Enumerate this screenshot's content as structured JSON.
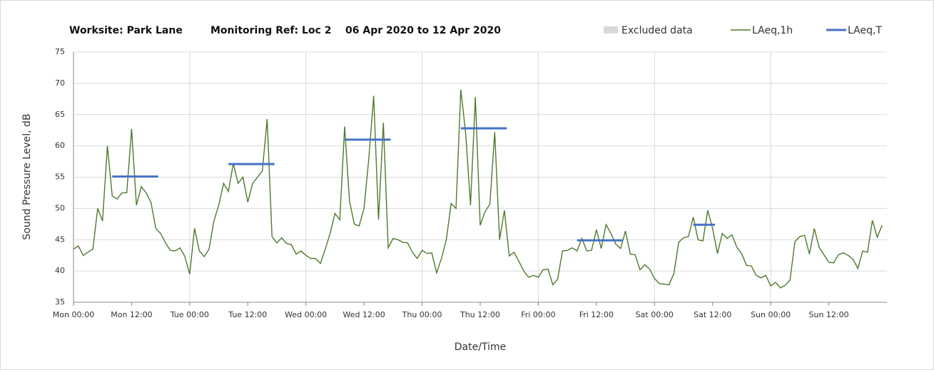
{
  "chart_data": {
    "type": "line",
    "title_parts": [
      "Worksite: Park Lane",
      "Monitoring Ref: Loc 2",
      "06 Apr 2020 to 12 Apr 2020"
    ],
    "ylabel": "Sound Pressure Level, dB",
    "xlabel": "Date/Time",
    "excluded_data": {
      "name": "Excluded data",
      "color": "#d9d9d9"
    },
    "xlim": [
      0,
      168
    ],
    "xticks": [
      {
        "value": 0,
        "label": "Mon 00:00"
      },
      {
        "value": 12,
        "label": "Mon 12:00"
      },
      {
        "value": 24,
        "label": "Tue 00:00"
      },
      {
        "value": 36,
        "label": "Tue 12:00"
      },
      {
        "value": 48,
        "label": "Wed 00:00"
      },
      {
        "value": 60,
        "label": "Wed 12:00"
      },
      {
        "value": 72,
        "label": "Thu 00:00"
      },
      {
        "value": 84,
        "label": "Thu 12:00"
      },
      {
        "value": 96,
        "label": "Fri 00:00"
      },
      {
        "value": 108,
        "label": "Fri 12:00"
      },
      {
        "value": 120,
        "label": "Sat 00:00"
      },
      {
        "value": 132,
        "label": "Sat 12:00"
      },
      {
        "value": 144,
        "label": "Sun 00:00"
      },
      {
        "value": 156,
        "label": "Sun 12:00"
      }
    ],
    "ylim": [
      35,
      75
    ],
    "yticks": [
      35,
      40,
      45,
      50,
      55,
      60,
      65,
      70,
      75
    ],
    "grid": true,
    "x": [
      0,
      1,
      2,
      3,
      4,
      5,
      6,
      7,
      8,
      9,
      10,
      11,
      12,
      13,
      14,
      15,
      16,
      17,
      18,
      19,
      20,
      21,
      22,
      23,
      24,
      25,
      26,
      27,
      28,
      29,
      30,
      31,
      32,
      33,
      34,
      35,
      36,
      37,
      38,
      39,
      40,
      41,
      42,
      43,
      44,
      45,
      46,
      47,
      48,
      49,
      50,
      51,
      52,
      53,
      54,
      55,
      56,
      57,
      58,
      59,
      60,
      61,
      62,
      63,
      64,
      65,
      66,
      67,
      68,
      69,
      70,
      71,
      72,
      73,
      74,
      75,
      76,
      77,
      78,
      79,
      80,
      81,
      82,
      83,
      84,
      85,
      86,
      87,
      88,
      89,
      90,
      91,
      92,
      93,
      94,
      95,
      96,
      97,
      98,
      99,
      100,
      101,
      102,
      103,
      104,
      105,
      106,
      107,
      108,
      109,
      110,
      111,
      112,
      113,
      114,
      115,
      116,
      117,
      118,
      119,
      120,
      121,
      122,
      123,
      124,
      125,
      126,
      127,
      128,
      129,
      130,
      131,
      132,
      133,
      134,
      135,
      136,
      137,
      138,
      139,
      140,
      141,
      142,
      143,
      144,
      145,
      146,
      147,
      148,
      149,
      150,
      151,
      152,
      153,
      154,
      155,
      156,
      157,
      158,
      159,
      160,
      161,
      162,
      163,
      164,
      165,
      166,
      167
    ],
    "series": [
      {
        "name": "LAeq,1h",
        "color": "#4e7a2e",
        "values": [
          43.5,
          44,
          42.5,
          43,
          43.5,
          50,
          48,
          60,
          52,
          51.5,
          52.5,
          52.5,
          62.7,
          50.5,
          53.5,
          52.5,
          51,
          46.8,
          46,
          44.5,
          43.3,
          43.2,
          43.7,
          42.3,
          39.5,
          46.8,
          43.2,
          42.3,
          43.5,
          48,
          50.5,
          54,
          52.7,
          57.2,
          54,
          55,
          51,
          54,
          55,
          56,
          64.3,
          45.5,
          44.5,
          45.3,
          44.4,
          44.2,
          42.7,
          43.2,
          42.5,
          42,
          42,
          41.2,
          43.5,
          46,
          49.2,
          48.2,
          63.1,
          51.2,
          47.5,
          47.2,
          50,
          58,
          68,
          48.2,
          63.7,
          43.7,
          45.2,
          45,
          44.6,
          44.5,
          43,
          42,
          43.3,
          42.8,
          42.9,
          39.7,
          42,
          45,
          50.8,
          50,
          69,
          62,
          50.5,
          67.8,
          47.3,
          49.5,
          50.7,
          62.2,
          45,
          49.7,
          42.4,
          43,
          41.5,
          40,
          39,
          39.3,
          39,
          40.2,
          40.3,
          37.8,
          38.7,
          43.2,
          43.3,
          43.7,
          43.2,
          45.2,
          43.2,
          43.3,
          46.6,
          43.6,
          47.4,
          46,
          44.3,
          43.6,
          46.4,
          42.7,
          42.6,
          40.2,
          41,
          40.3,
          38.8,
          38,
          37.9,
          37.8,
          39.6,
          44.6,
          45.3,
          45.5,
          48.6,
          45,
          44.8,
          49.7,
          46.8,
          42.8,
          46,
          45.2,
          45.8,
          43.8,
          42.8,
          40.9,
          40.8,
          39.3,
          38.9,
          39.3,
          37.6,
          38.2,
          37.3,
          37.7,
          38.6,
          44.7,
          45.5,
          45.7,
          42.7,
          46.8,
          43.8,
          42.6,
          41.4,
          41.3,
          42.6,
          42.9,
          42.5,
          41.9,
          40.4,
          43.2,
          43,
          48.1,
          45.4,
          47.3
        ]
      },
      {
        "name": "LAeq,T",
        "color": "#4472c4",
        "segments": [
          {
            "x": [
              8,
              17.5
            ],
            "value": 55.1
          },
          {
            "x": [
              32,
              41.5
            ],
            "value": 57.1
          },
          {
            "x": [
              56,
              65.5
            ],
            "value": 61
          },
          {
            "x": [
              80,
              89.5
            ],
            "value": 62.8
          },
          {
            "x": [
              104,
              113.5
            ],
            "value": 44.9
          },
          {
            "x": [
              128,
              132.5
            ],
            "value": 47.4
          }
        ]
      }
    ]
  }
}
